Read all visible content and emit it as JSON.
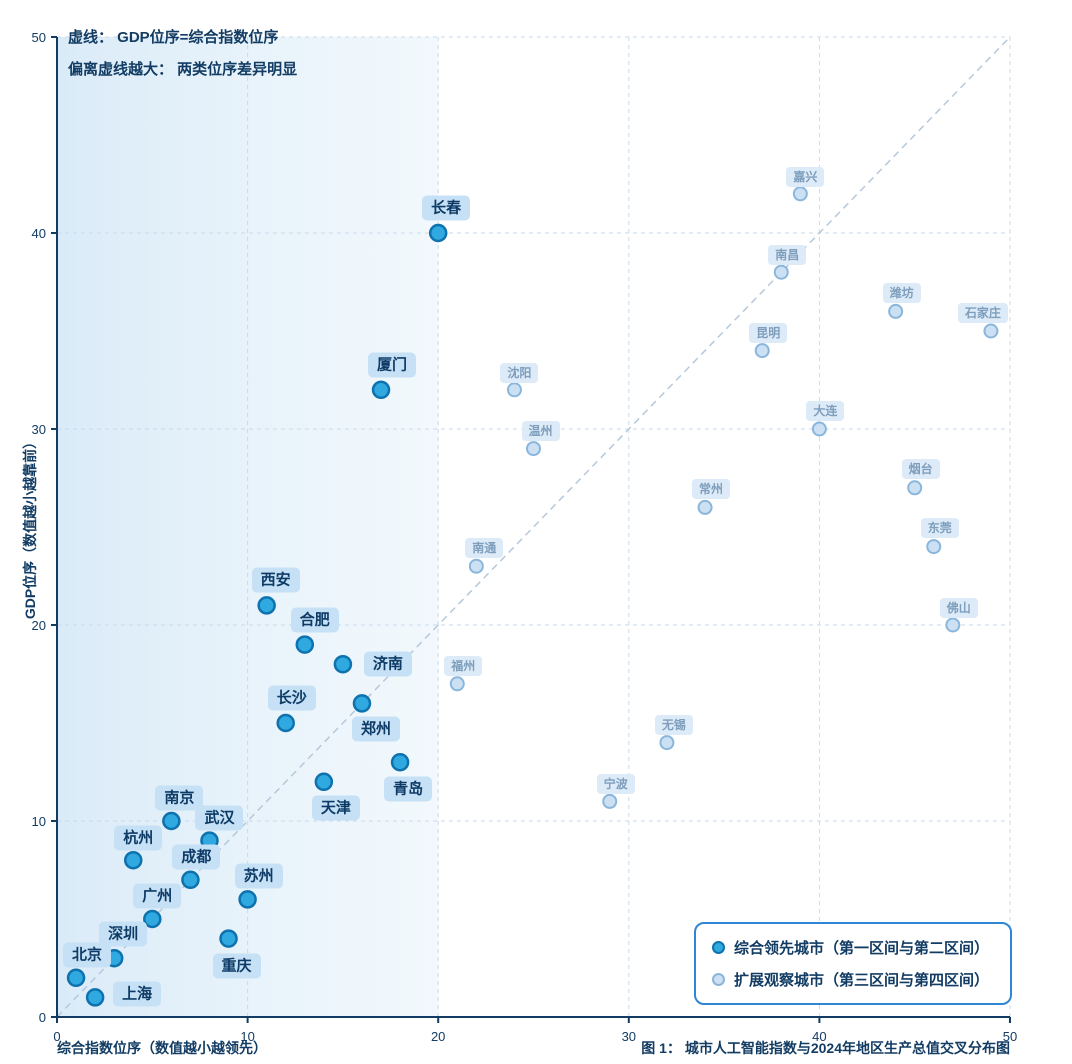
{
  "annotations": {
    "line1": "虚线： GDP位序=综合指数位序",
    "line2": "偏离虚线越大： 两类位序差异明显"
  },
  "axes": {
    "x_label": "综合指数位序（数值越小越领先）",
    "y_label": "GDP位序（数值越小越靠前）",
    "x_ticks": [
      0,
      10,
      20,
      30,
      40,
      50
    ],
    "y_ticks": [
      0,
      10,
      20,
      30,
      40,
      50
    ]
  },
  "caption": "图 1： 城市人工智能指数与2024年地区生产总值交叉分布图",
  "legend": [
    {
      "label": "综合领先城市（第一区间与第二区间）",
      "series": "leading"
    },
    {
      "label": "扩展观察城市（第三区间与第四区间）",
      "series": "observed"
    }
  ],
  "colors": {
    "leading_fill": "#2fa9e0",
    "leading_stroke": "#0e72ae",
    "observed_fill": "#cce0f3",
    "observed_stroke": "#8ab6dc",
    "text_navy": "#123c63",
    "legend_border": "#2f86d6",
    "zone_shade": "#c3def3"
  },
  "chart_data": {
    "type": "scatter",
    "title": "图 1： 城市人工智能指数与2024年地区生产总值交叉分布图",
    "xlabel": "综合指数位序（数值越小越领先）",
    "ylabel": "GDP位序（数值越小越靠前）",
    "xlim": [
      0,
      50
    ],
    "ylim": [
      0,
      50
    ],
    "grid": true,
    "identity_line": true,
    "highlight_zone_x": [
      0,
      20
    ],
    "legend_position": "bottom-right",
    "series": [
      {
        "name": "综合领先城市（第一区间与第二区间）",
        "key": "leading",
        "points": [
          {
            "city": "北京",
            "x": 1,
            "y": 2,
            "dx": 11,
            "dy": -23
          },
          {
            "city": "上海",
            "x": 2,
            "y": 1,
            "dx": 42,
            "dy": -3
          },
          {
            "city": "深圳",
            "x": 3,
            "y": 3,
            "dx": 9,
            "dy": -24
          },
          {
            "city": "重庆",
            "x": 9,
            "y": 4,
            "dx": 8,
            "dy": 27
          },
          {
            "city": "广州",
            "x": 5,
            "y": 5,
            "dx": 5,
            "dy": -23
          },
          {
            "city": "苏州",
            "x": 10,
            "y": 6,
            "dx": 11,
            "dy": -23
          },
          {
            "city": "成都",
            "x": 7,
            "y": 7,
            "dx": 6,
            "dy": -23
          },
          {
            "city": "杭州",
            "x": 4,
            "y": 8,
            "dx": 5,
            "dy": -22
          },
          {
            "city": "武汉",
            "x": 8,
            "y": 9,
            "dx": 10,
            "dy": -23
          },
          {
            "city": "南京",
            "x": 6,
            "y": 10,
            "dx": 8,
            "dy": -23
          },
          {
            "city": "天津",
            "x": 14,
            "y": 12,
            "dx": 12,
            "dy": 26
          },
          {
            "city": "青岛",
            "x": 18,
            "y": 13,
            "dx": 8,
            "dy": 27
          },
          {
            "city": "长沙",
            "x": 12,
            "y": 15,
            "dx": 6,
            "dy": -25
          },
          {
            "city": "郑州",
            "x": 16,
            "y": 16,
            "dx": 14,
            "dy": 26
          },
          {
            "city": "济南",
            "x": 15,
            "y": 18,
            "dx": 45,
            "dy": 0
          },
          {
            "city": "合肥",
            "x": 13,
            "y": 19,
            "dx": 10,
            "dy": -25
          },
          {
            "city": "西安",
            "x": 11,
            "y": 21,
            "dx": 9,
            "dy": -25
          },
          {
            "city": "厦门",
            "x": 17,
            "y": 32,
            "dx": 11,
            "dy": -25
          },
          {
            "city": "长春",
            "x": 20,
            "y": 40,
            "dx": 8,
            "dy": -25
          }
        ]
      },
      {
        "name": "扩展观察城市（第三区间与第四区间）",
        "key": "observed",
        "points": [
          {
            "city": "宁波",
            "x": 29,
            "y": 11,
            "dx": 6,
            "dy": -17
          },
          {
            "city": "无锡",
            "x": 32,
            "y": 14,
            "dx": 7,
            "dy": -18
          },
          {
            "city": "福州",
            "x": 21,
            "y": 17,
            "dx": 6,
            "dy": -18
          },
          {
            "city": "佛山",
            "x": 47,
            "y": 20,
            "dx": 6,
            "dy": -17
          },
          {
            "city": "南通",
            "x": 22,
            "y": 23,
            "dx": 8,
            "dy": -18
          },
          {
            "city": "东莞",
            "x": 46,
            "y": 24,
            "dx": 6,
            "dy": -19
          },
          {
            "city": "常州",
            "x": 34,
            "y": 26,
            "dx": 6,
            "dy": -18
          },
          {
            "city": "烟台",
            "x": 45,
            "y": 27,
            "dx": 6,
            "dy": -19
          },
          {
            "city": "温州",
            "x": 25,
            "y": 29,
            "dx": 7,
            "dy": -18
          },
          {
            "city": "大连",
            "x": 40,
            "y": 30,
            "dx": 6,
            "dy": -18
          },
          {
            "city": "沈阳",
            "x": 24,
            "y": 32,
            "dx": 5,
            "dy": -17
          },
          {
            "city": "昆明",
            "x": 37,
            "y": 34,
            "dx": 6,
            "dy": -18
          },
          {
            "city": "石家庄",
            "x": 49,
            "y": 35,
            "dx": -8,
            "dy": -18
          },
          {
            "city": "潍坊",
            "x": 44,
            "y": 36,
            "dx": 6,
            "dy": -18
          },
          {
            "city": "南昌",
            "x": 38,
            "y": 38,
            "dx": 6,
            "dy": -17
          },
          {
            "city": "嘉兴",
            "x": 39,
            "y": 42,
            "dx": 5,
            "dy": -17
          }
        ]
      }
    ]
  }
}
